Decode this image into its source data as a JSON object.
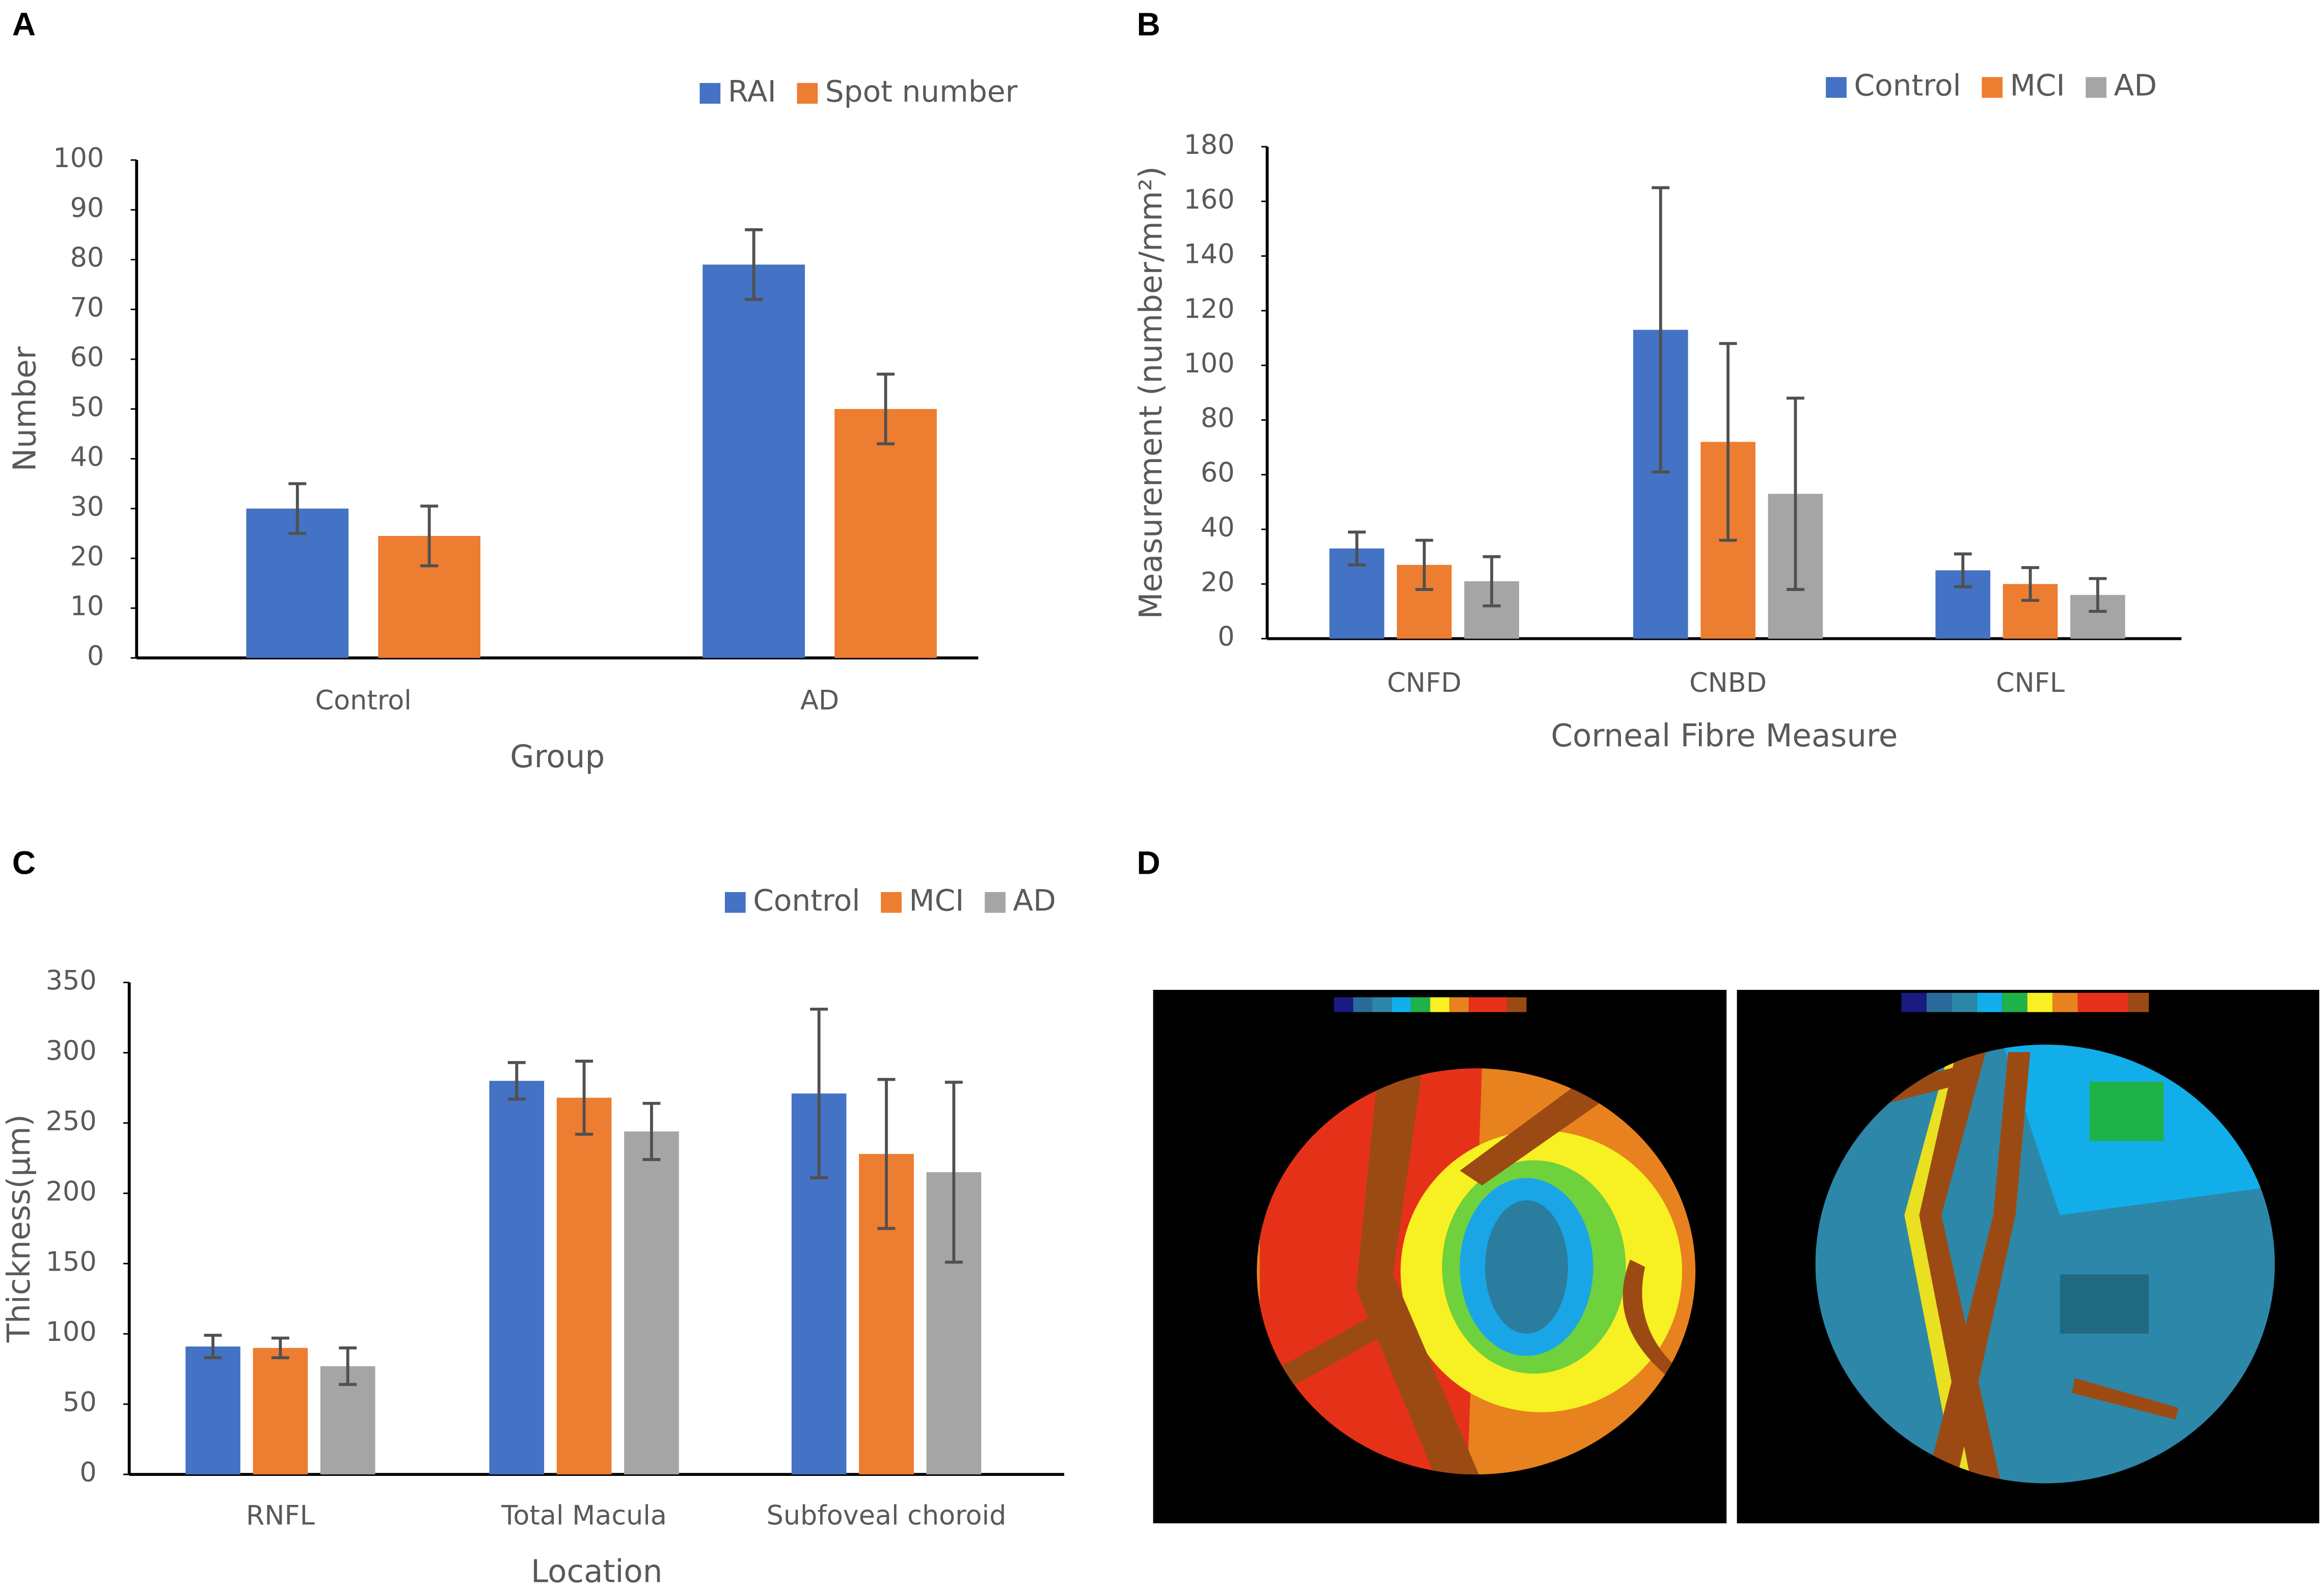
{
  "chart_data": [
    {
      "type": "bar",
      "panel_label": "A",
      "x_label": "Group",
      "y_label": "Number",
      "categories": [
        "Control",
        "AD"
      ],
      "series": [
        {
          "name": "RAI",
          "color": "#4472c4",
          "values": [
            30,
            79
          ],
          "errors": [
            5,
            7
          ]
        },
        {
          "name": "Spot number",
          "color": "#ed7d31",
          "values": [
            24.5,
            50
          ],
          "errors": [
            6,
            7
          ]
        }
      ],
      "ylim": [
        0,
        100
      ],
      "yticks": [
        0,
        10,
        20,
        30,
        40,
        50,
        60,
        70,
        80,
        90,
        100
      ],
      "legend": "top-right"
    },
    {
      "type": "bar",
      "panel_label": "B",
      "x_label": "Corneal Fibre Measure",
      "y_label": "Measurement (number/mm²)",
      "categories": [
        "CNFD",
        "CNBD",
        "CNFL"
      ],
      "series": [
        {
          "name": "Control",
          "color": "#4472c4",
          "values": [
            33,
            113,
            25
          ],
          "errors": [
            6,
            52,
            6
          ]
        },
        {
          "name": "MCI",
          "color": "#ed7d31",
          "values": [
            27,
            72,
            20
          ],
          "errors": [
            9,
            36,
            6
          ]
        },
        {
          "name": "AD",
          "color": "#a5a5a5",
          "values": [
            21,
            53,
            16
          ],
          "errors": [
            9,
            35,
            6
          ]
        }
      ],
      "ylim": [
        0,
        180
      ],
      "yticks": [
        0,
        20,
        40,
        60,
        80,
        100,
        120,
        140,
        160,
        180
      ],
      "legend": "top-right"
    },
    {
      "type": "bar",
      "panel_label": "C",
      "x_label": "Location",
      "y_label": "Thickness(μm)",
      "categories": [
        "RNFL",
        "Total Macula",
        "Subfoveal choroid"
      ],
      "series": [
        {
          "name": "Control",
          "color": "#4472c4",
          "values": [
            91,
            280,
            271
          ],
          "errors": [
            8,
            13,
            60
          ]
        },
        {
          "name": "MCI",
          "color": "#ed7d31",
          "values": [
            90,
            268,
            228
          ],
          "errors": [
            7,
            26,
            53
          ]
        },
        {
          "name": "AD",
          "color": "#a5a5a5",
          "values": [
            77,
            244,
            215
          ],
          "errors": [
            13,
            20,
            64
          ]
        }
      ],
      "ylim": [
        0,
        350
      ],
      "yticks": [
        0,
        50,
        100,
        150,
        200,
        250,
        300,
        350
      ],
      "legend": "top-right"
    }
  ],
  "panel_d": {
    "panel_label": "D"
  }
}
